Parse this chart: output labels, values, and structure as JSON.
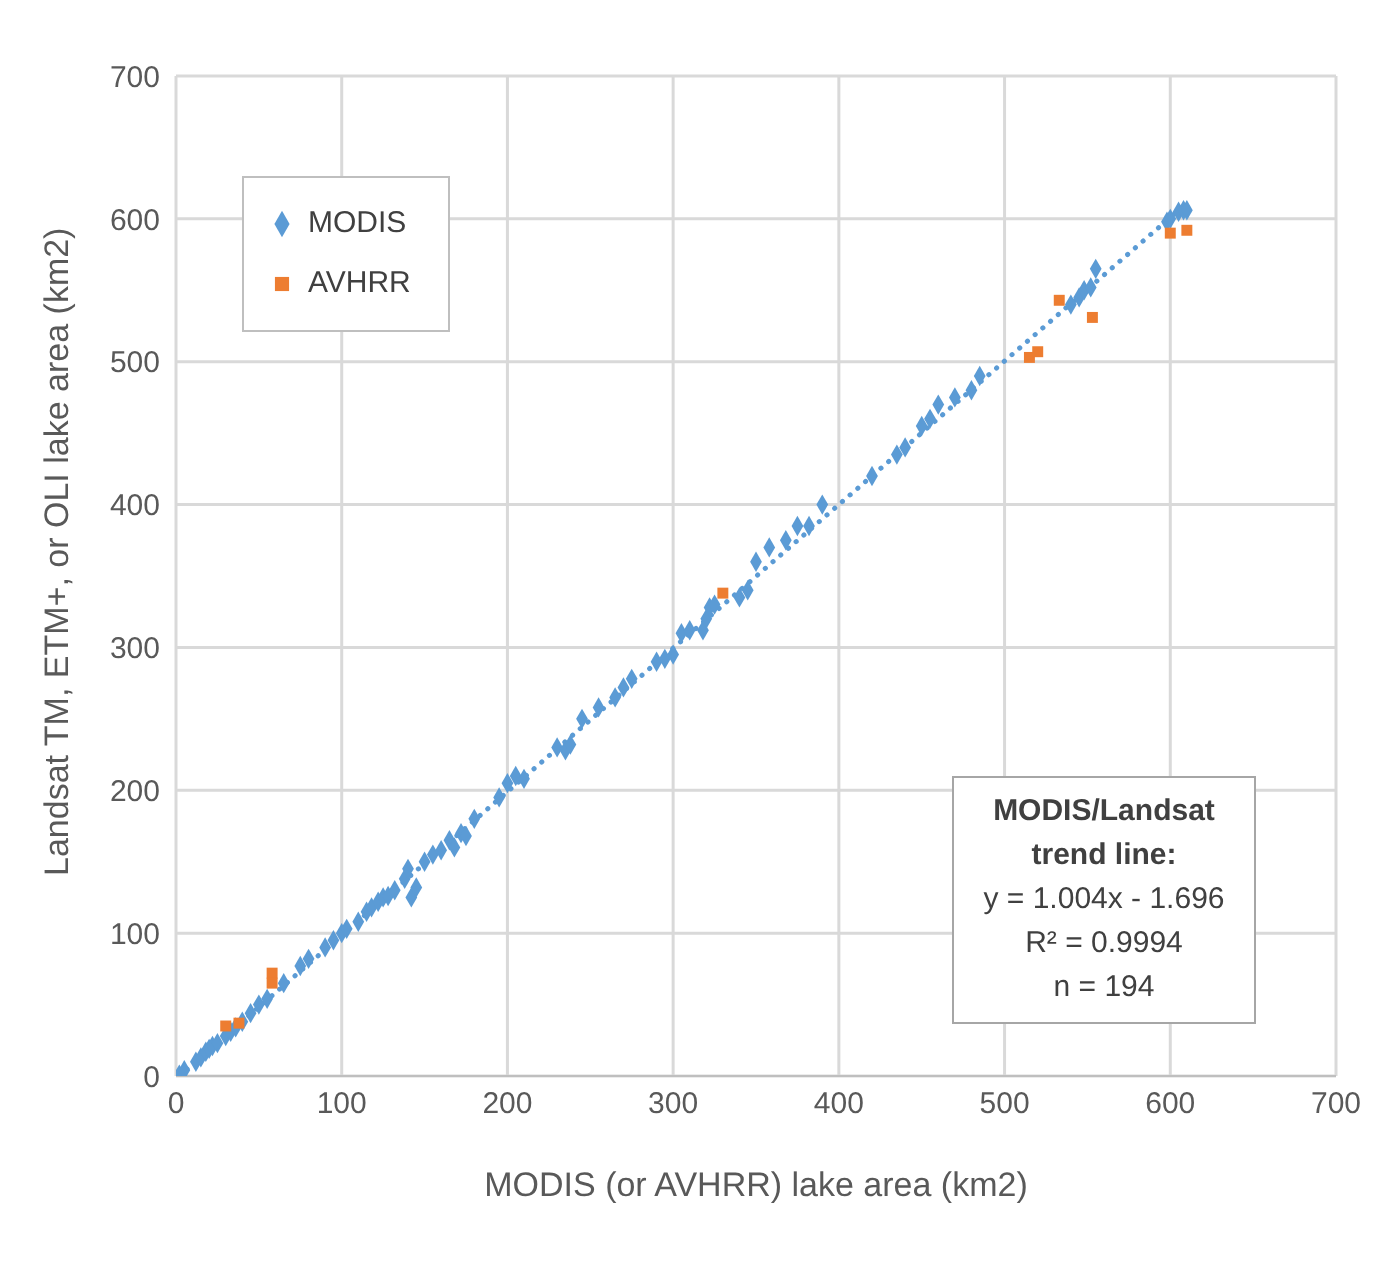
{
  "chart_data": {
    "type": "scatter",
    "xlabel": "MODIS (or AVHRR)  lake area (km2)",
    "ylabel": "Landsat TM, ETM+, or OLI lake area (km2)",
    "xlim": [
      0,
      700
    ],
    "xticks": [
      0,
      100,
      200,
      300,
      400,
      500,
      600,
      700
    ],
    "ylim": [
      0,
      700
    ],
    "yticks": [
      0,
      100,
      200,
      300,
      400,
      500,
      600,
      700
    ],
    "grid": true,
    "legend": "top left",
    "series": [
      {
        "name": "MODIS",
        "marker": "diamond",
        "color": "#5b9bd5",
        "x": [
          2,
          5,
          12,
          15,
          18,
          20,
          22,
          25,
          30,
          33,
          36,
          40,
          45,
          50,
          55,
          65,
          75,
          80,
          90,
          95,
          100,
          103,
          110,
          115,
          118,
          122,
          125,
          128,
          132,
          138,
          140,
          142,
          145,
          150,
          155,
          160,
          165,
          168,
          172,
          175,
          180,
          195,
          200,
          205,
          210,
          230,
          235,
          238,
          245,
          255,
          265,
          270,
          275,
          290,
          295,
          300,
          305,
          310,
          318,
          320,
          322,
          325,
          340,
          345,
          350,
          358,
          368,
          375,
          382,
          390,
          420,
          435,
          440,
          450,
          455,
          460,
          470,
          480,
          485,
          540,
          545,
          548,
          552,
          555,
          598,
          600,
          605,
          608,
          610
        ],
        "values": [
          1,
          4,
          10,
          13,
          17,
          19,
          21,
          23,
          28,
          31,
          34,
          38,
          44,
          50,
          54,
          65,
          77,
          82,
          90,
          95,
          100,
          103,
          108,
          115,
          118,
          122,
          125,
          126,
          130,
          138,
          145,
          125,
          132,
          150,
          155,
          158,
          165,
          160,
          170,
          168,
          180,
          195,
          205,
          210,
          208,
          230,
          228,
          232,
          250,
          258,
          265,
          272,
          278,
          290,
          292,
          295,
          310,
          312,
          312,
          320,
          328,
          330,
          335,
          340,
          360,
          370,
          375,
          385,
          385,
          400,
          420,
          435,
          440,
          455,
          460,
          470,
          475,
          480,
          490,
          540,
          545,
          550,
          552,
          565,
          598,
          600,
          605,
          606,
          606
        ]
      },
      {
        "name": "AVHRR",
        "marker": "square",
        "color": "#ed7d31",
        "x": [
          30,
          38,
          58,
          58,
          330,
          515,
          520,
          533,
          553,
          600,
          610
        ],
        "values": [
          35,
          37,
          72,
          65,
          338,
          503,
          507,
          543,
          531,
          590,
          592
        ]
      },
      {
        "type": "line",
        "line_style": "dotted",
        "marker": "none",
        "color": "#5b9bd5",
        "x": [
          2,
          610
        ],
        "values": [
          0,
          611
        ]
      }
    ],
    "annotations": [
      "MODIS/Landsat trend line:",
      "y = 1.004x - 1.696",
      "R² = 0.9994",
      "n = 194"
    ]
  }
}
